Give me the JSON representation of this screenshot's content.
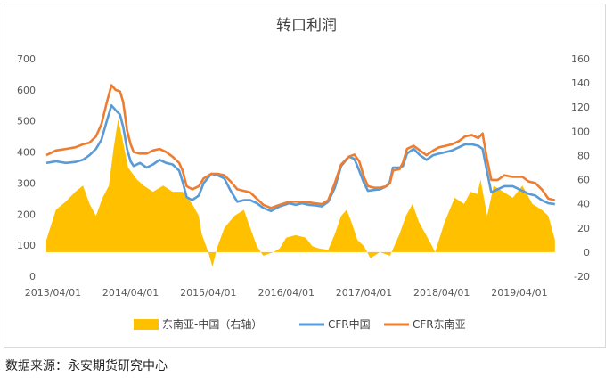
{
  "chart_data": {
    "type": "line",
    "title": "转口利润",
    "x_ticks": [
      "2013/04/01",
      "2014/04/01",
      "2015/04/01",
      "2016/04/01",
      "2017/04/01",
      "2018/04/01",
      "2019/04/01"
    ],
    "y_left": {
      "min": 0,
      "max": 700,
      "step": 100
    },
    "y_right": {
      "min": -20,
      "max": 160,
      "step": 20
    },
    "grid": false,
    "legend_position": "bottom",
    "series": [
      {
        "name": "东南亚-中国（右轴）",
        "type": "area",
        "axis": "right",
        "color": "#ffc000",
        "points": [
          [
            "2013-03-01",
            10
          ],
          [
            "2013-04-15",
            35
          ],
          [
            "2013-06-01",
            42
          ],
          [
            "2013-07-15",
            50
          ],
          [
            "2013-08-20",
            55
          ],
          [
            "2013-09-20",
            40
          ],
          [
            "2013-10-20",
            30
          ],
          [
            "2013-11-20",
            45
          ],
          [
            "2013-12-20",
            55
          ],
          [
            "2014-01-10",
            85
          ],
          [
            "2014-02-01",
            110
          ],
          [
            "2014-02-20",
            95
          ],
          [
            "2014-03-20",
            70
          ],
          [
            "2014-05-01",
            60
          ],
          [
            "2014-06-01",
            55
          ],
          [
            "2014-07-15",
            50
          ],
          [
            "2014-09-01",
            55
          ],
          [
            "2014-10-15",
            50
          ],
          [
            "2014-12-01",
            50
          ],
          [
            "2015-01-15",
            40
          ],
          [
            "2015-02-15",
            30
          ],
          [
            "2015-03-01",
            15
          ],
          [
            "2015-04-01",
            0
          ],
          [
            "2015-04-20",
            -12
          ],
          [
            "2015-05-15",
            5
          ],
          [
            "2015-06-15",
            20
          ],
          [
            "2015-08-01",
            30
          ],
          [
            "2015-09-15",
            35
          ],
          [
            "2015-10-15",
            20
          ],
          [
            "2015-11-15",
            5
          ],
          [
            "2015-12-15",
            -3
          ],
          [
            "2016-02-01",
            0
          ],
          [
            "2016-03-01",
            3
          ],
          [
            "2016-04-01",
            12
          ],
          [
            "2016-05-15",
            14
          ],
          [
            "2016-07-01",
            12
          ],
          [
            "2016-08-01",
            5
          ],
          [
            "2016-09-01",
            3
          ],
          [
            "2016-10-15",
            2
          ],
          [
            "2016-11-15",
            15
          ],
          [
            "2016-12-15",
            30
          ],
          [
            "2017-01-10",
            35
          ],
          [
            "2017-02-01",
            25
          ],
          [
            "2017-03-01",
            10
          ],
          [
            "2017-04-01",
            5
          ],
          [
            "2017-05-01",
            -5
          ],
          [
            "2017-06-15",
            0
          ],
          [
            "2017-08-01",
            -3
          ],
          [
            "2017-09-15",
            15
          ],
          [
            "2017-10-15",
            30
          ],
          [
            "2017-11-15",
            40
          ],
          [
            "2017-12-15",
            25
          ],
          [
            "2018-01-15",
            15
          ],
          [
            "2018-02-15",
            5
          ],
          [
            "2018-03-01",
            0
          ],
          [
            "2018-04-15",
            25
          ],
          [
            "2018-06-01",
            45
          ],
          [
            "2018-07-15",
            40
          ],
          [
            "2018-08-15",
            50
          ],
          [
            "2018-09-15",
            48
          ],
          [
            "2018-10-01",
            60
          ],
          [
            "2018-11-01",
            30
          ],
          [
            "2018-12-01",
            55
          ],
          [
            "2019-01-15",
            50
          ],
          [
            "2019-03-01",
            45
          ],
          [
            "2019-04-15",
            55
          ],
          [
            "2019-06-01",
            40
          ],
          [
            "2019-07-15",
            35
          ],
          [
            "2019-08-15",
            30
          ],
          [
            "2019-09-15",
            10
          ]
        ]
      },
      {
        "name": "CFR中国",
        "type": "line",
        "axis": "left",
        "color": "#5b9bd5",
        "points": [
          [
            "2013-03-01",
            365
          ],
          [
            "2013-04-15",
            370
          ],
          [
            "2013-06-01",
            365
          ],
          [
            "2013-07-15",
            368
          ],
          [
            "2013-08-20",
            375
          ],
          [
            "2013-09-20",
            390
          ],
          [
            "2013-10-20",
            410
          ],
          [
            "2013-11-15",
            440
          ],
          [
            "2013-12-10",
            500
          ],
          [
            "2014-01-01",
            550
          ],
          [
            "2014-01-20",
            535
          ],
          [
            "2014-02-10",
            520
          ],
          [
            "2014-02-25",
            480
          ],
          [
            "2014-03-15",
            410
          ],
          [
            "2014-04-01",
            370
          ],
          [
            "2014-04-15",
            355
          ],
          [
            "2014-05-15",
            365
          ],
          [
            "2014-06-15",
            350
          ],
          [
            "2014-07-15",
            360
          ],
          [
            "2014-08-15",
            375
          ],
          [
            "2014-09-15",
            365
          ],
          [
            "2014-10-15",
            360
          ],
          [
            "2014-11-15",
            340
          ],
          [
            "2014-12-01",
            305
          ],
          [
            "2014-12-20",
            255
          ],
          [
            "2015-01-15",
            245
          ],
          [
            "2015-02-15",
            260
          ],
          [
            "2015-03-10",
            300
          ],
          [
            "2015-04-15",
            330
          ],
          [
            "2015-05-15",
            325
          ],
          [
            "2015-06-15",
            315
          ],
          [
            "2015-07-15",
            275
          ],
          [
            "2015-08-15",
            240
          ],
          [
            "2015-09-15",
            245
          ],
          [
            "2015-10-15",
            245
          ],
          [
            "2015-11-15",
            235
          ],
          [
            "2015-12-15",
            220
          ],
          [
            "2016-01-20",
            210
          ],
          [
            "2016-03-01",
            225
          ],
          [
            "2016-04-15",
            235
          ],
          [
            "2016-05-15",
            230
          ],
          [
            "2016-06-15",
            235
          ],
          [
            "2016-07-15",
            230
          ],
          [
            "2016-08-15",
            228
          ],
          [
            "2016-09-15",
            225
          ],
          [
            "2016-10-15",
            240
          ],
          [
            "2016-11-15",
            285
          ],
          [
            "2016-12-15",
            355
          ],
          [
            "2017-01-20",
            385
          ],
          [
            "2017-02-15",
            378
          ],
          [
            "2017-03-10",
            340
          ],
          [
            "2017-04-01",
            300
          ],
          [
            "2017-04-20",
            275
          ],
          [
            "2017-05-20",
            278
          ],
          [
            "2017-06-15",
            280
          ],
          [
            "2017-07-15",
            290
          ],
          [
            "2017-08-01",
            305
          ],
          [
            "2017-08-15",
            350
          ],
          [
            "2017-09-15",
            350
          ],
          [
            "2017-10-01",
            355
          ],
          [
            "2017-10-20",
            395
          ],
          [
            "2017-11-20",
            410
          ],
          [
            "2017-12-20",
            390
          ],
          [
            "2018-01-20",
            375
          ],
          [
            "2018-02-20",
            390
          ],
          [
            "2018-03-20",
            395
          ],
          [
            "2018-04-20",
            400
          ],
          [
            "2018-05-20",
            405
          ],
          [
            "2018-06-20",
            415
          ],
          [
            "2018-07-20",
            425
          ],
          [
            "2018-08-20",
            425
          ],
          [
            "2018-09-20",
            420
          ],
          [
            "2018-10-10",
            410
          ],
          [
            "2018-10-30",
            340
          ],
          [
            "2018-11-20",
            270
          ],
          [
            "2018-12-20",
            280
          ],
          [
            "2019-01-20",
            290
          ],
          [
            "2019-03-01",
            290
          ],
          [
            "2019-04-15",
            275
          ],
          [
            "2019-05-15",
            265
          ],
          [
            "2019-06-15",
            260
          ],
          [
            "2019-07-15",
            245
          ],
          [
            "2019-08-15",
            235
          ],
          [
            "2019-09-15",
            232
          ]
        ]
      },
      {
        "name": "CFR东南亚",
        "type": "line",
        "axis": "left",
        "color": "#ed7d31",
        "points": [
          [
            "2013-03-01",
            390
          ],
          [
            "2013-04-15",
            405
          ],
          [
            "2013-06-01",
            410
          ],
          [
            "2013-07-15",
            415
          ],
          [
            "2013-08-20",
            425
          ],
          [
            "2013-09-20",
            430
          ],
          [
            "2013-10-20",
            450
          ],
          [
            "2013-11-15",
            490
          ],
          [
            "2013-12-10",
            560
          ],
          [
            "2014-01-01",
            615
          ],
          [
            "2014-01-20",
            600
          ],
          [
            "2014-02-10",
            595
          ],
          [
            "2014-02-25",
            560
          ],
          [
            "2014-03-15",
            470
          ],
          [
            "2014-04-01",
            425
          ],
          [
            "2014-04-15",
            400
          ],
          [
            "2014-05-15",
            395
          ],
          [
            "2014-06-15",
            395
          ],
          [
            "2014-07-15",
            405
          ],
          [
            "2014-08-15",
            410
          ],
          [
            "2014-09-15",
            400
          ],
          [
            "2014-10-15",
            385
          ],
          [
            "2014-11-15",
            365
          ],
          [
            "2014-12-01",
            340
          ],
          [
            "2014-12-20",
            290
          ],
          [
            "2015-01-15",
            280
          ],
          [
            "2015-02-15",
            290
          ],
          [
            "2015-03-10",
            315
          ],
          [
            "2015-04-15",
            330
          ],
          [
            "2015-05-15",
            330
          ],
          [
            "2015-06-15",
            325
          ],
          [
            "2015-07-15",
            305
          ],
          [
            "2015-08-15",
            280
          ],
          [
            "2015-09-15",
            275
          ],
          [
            "2015-10-15",
            270
          ],
          [
            "2015-11-15",
            250
          ],
          [
            "2015-12-15",
            230
          ],
          [
            "2016-01-20",
            220
          ],
          [
            "2016-03-01",
            230
          ],
          [
            "2016-04-15",
            240
          ],
          [
            "2016-05-15",
            240
          ],
          [
            "2016-06-15",
            240
          ],
          [
            "2016-07-15",
            238
          ],
          [
            "2016-08-15",
            235
          ],
          [
            "2016-09-15",
            232
          ],
          [
            "2016-10-15",
            245
          ],
          [
            "2016-11-15",
            300
          ],
          [
            "2016-12-15",
            360
          ],
          [
            "2017-01-20",
            385
          ],
          [
            "2017-02-15",
            392
          ],
          [
            "2017-03-10",
            370
          ],
          [
            "2017-04-01",
            320
          ],
          [
            "2017-04-20",
            290
          ],
          [
            "2017-05-20",
            285
          ],
          [
            "2017-06-15",
            285
          ],
          [
            "2017-07-15",
            290
          ],
          [
            "2017-08-01",
            300
          ],
          [
            "2017-08-15",
            340
          ],
          [
            "2017-09-15",
            345
          ],
          [
            "2017-10-01",
            365
          ],
          [
            "2017-10-20",
            410
          ],
          [
            "2017-11-20",
            420
          ],
          [
            "2017-12-20",
            405
          ],
          [
            "2018-01-20",
            390
          ],
          [
            "2018-02-20",
            405
          ],
          [
            "2018-03-20",
            415
          ],
          [
            "2018-04-20",
            420
          ],
          [
            "2018-05-20",
            425
          ],
          [
            "2018-06-20",
            435
          ],
          [
            "2018-07-20",
            450
          ],
          [
            "2018-08-20",
            455
          ],
          [
            "2018-09-20",
            445
          ],
          [
            "2018-10-10",
            460
          ],
          [
            "2018-10-30",
            380
          ],
          [
            "2018-11-20",
            310
          ],
          [
            "2018-12-20",
            310
          ],
          [
            "2019-01-20",
            325
          ],
          [
            "2019-03-01",
            320
          ],
          [
            "2019-04-15",
            320
          ],
          [
            "2019-05-15",
            305
          ],
          [
            "2019-06-15",
            300
          ],
          [
            "2019-07-15",
            280
          ],
          [
            "2019-08-15",
            250
          ],
          [
            "2019-09-15",
            245
          ]
        ]
      }
    ]
  },
  "source_note": "数据来源：永安期货研究中心"
}
